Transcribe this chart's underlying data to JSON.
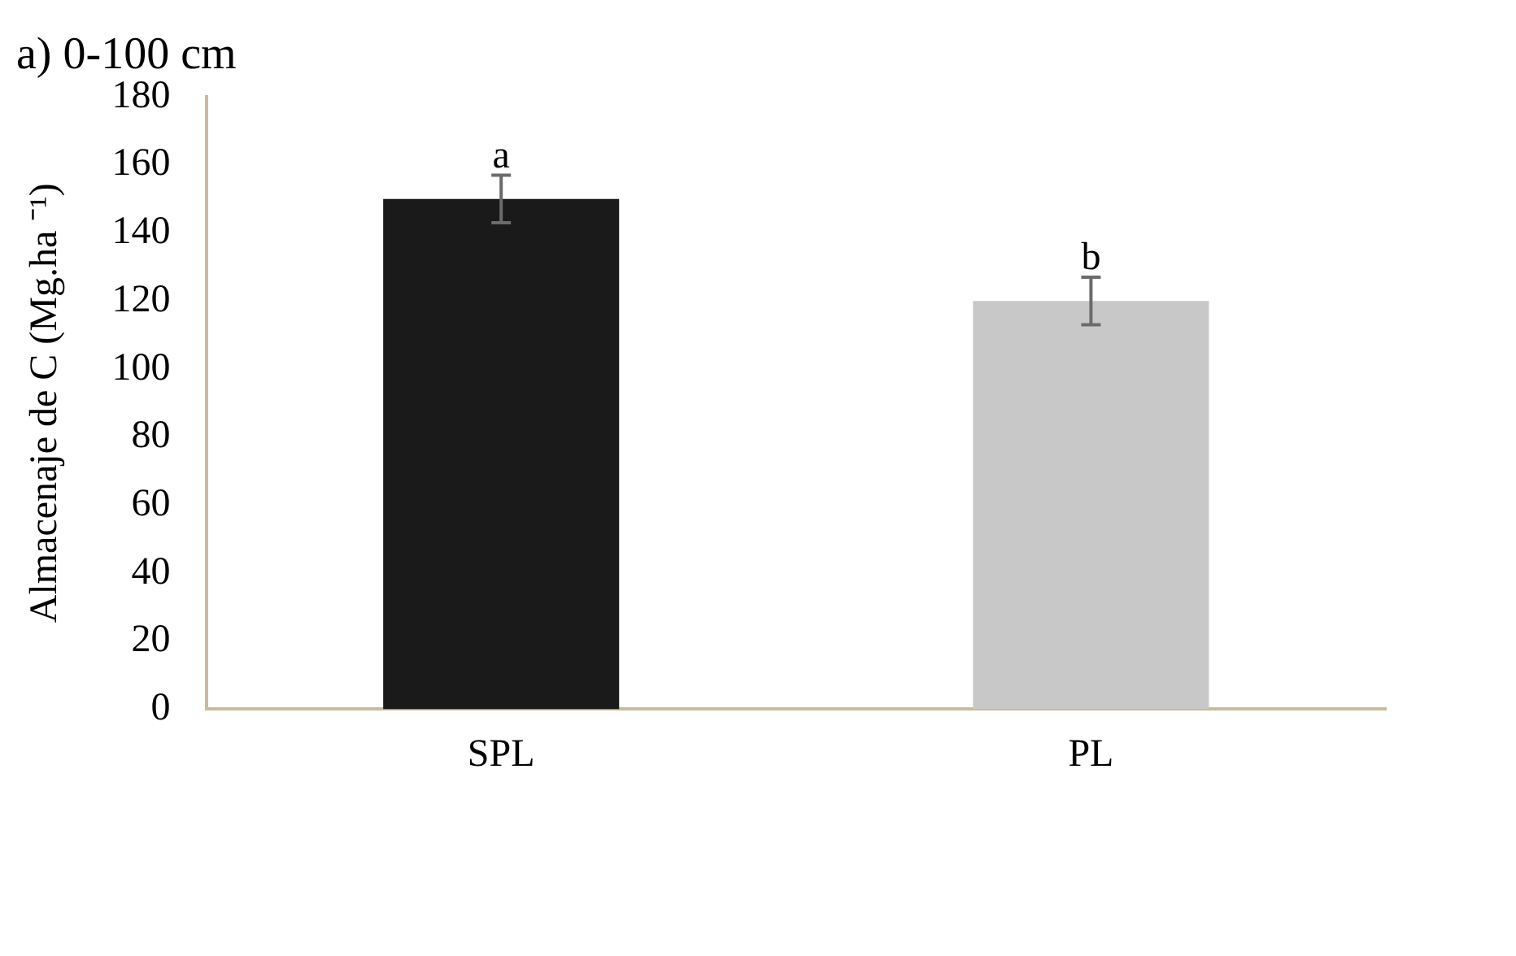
{
  "chart_data": {
    "type": "bar",
    "title": "a) 0-100 cm",
    "ylabel": "Almacenaje de C (Mg.ha ⁻¹)",
    "categories": [
      "SPL",
      "PL"
    ],
    "values": [
      150,
      120
    ],
    "colors": [
      "#1a1a1a",
      "#c8c8c8"
    ],
    "errors": [
      7,
      7
    ],
    "ylim": [
      0,
      180
    ],
    "yticks": [
      0,
      20,
      40,
      60,
      80,
      100,
      120,
      140,
      160,
      180
    ],
    "grid": false,
    "legend": false,
    "annotations": [
      {
        "text": "a",
        "x": "SPL",
        "y": 158
      },
      {
        "text": "b",
        "x": "PL",
        "y": 128
      }
    ]
  }
}
